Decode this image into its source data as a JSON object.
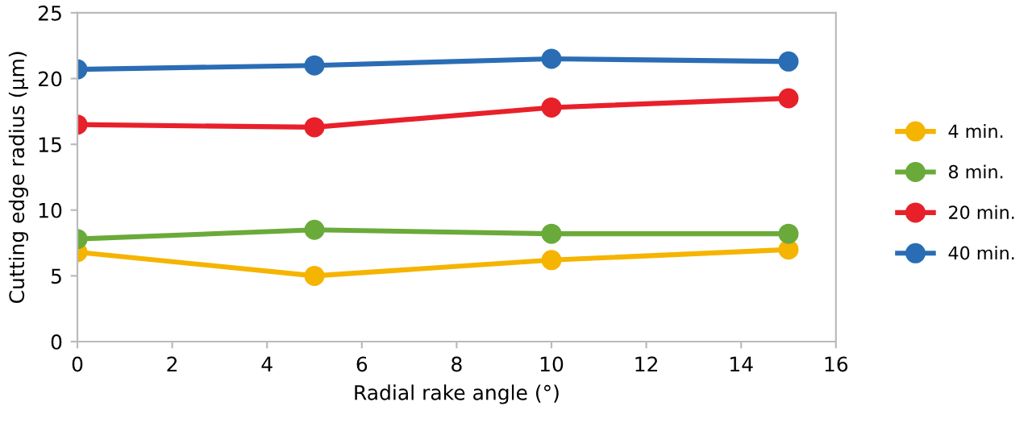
{
  "chart_data": {
    "type": "line",
    "xlabel": "Radial rake angle (°)",
    "ylabel": "Cutting edge radius (µm)",
    "x": [
      0,
      5,
      10,
      15
    ],
    "series": [
      {
        "name": "4 min.",
        "color": "#f5b400",
        "values": [
          6.8,
          5.0,
          6.2,
          7.0
        ]
      },
      {
        "name": "8 min.",
        "color": "#6aaa3a",
        "values": [
          7.8,
          8.5,
          8.2,
          8.2
        ]
      },
      {
        "name": "20 min.",
        "color": "#e8202a",
        "values": [
          16.5,
          16.3,
          17.8,
          18.5
        ]
      },
      {
        "name": "40 min.",
        "color": "#2a6db5",
        "values": [
          20.7,
          21.0,
          21.5,
          21.3
        ]
      }
    ],
    "xlim": [
      0,
      16
    ],
    "xticks": [
      0,
      2,
      4,
      6,
      8,
      10,
      12,
      14,
      16
    ],
    "ylim": [
      0,
      25
    ],
    "yticks": [
      0,
      5,
      10,
      15,
      20,
      25
    ],
    "marker": "circle",
    "line_style": "solid",
    "legend": "right",
    "grid": false
  }
}
